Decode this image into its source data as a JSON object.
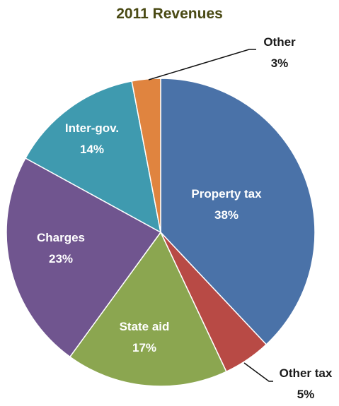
{
  "chart_data": {
    "type": "pie",
    "title": "2011 Revenues",
    "categories": [
      "Property tax",
      "Other tax",
      "State aid",
      "Charges",
      "Inter-gov.",
      "Other"
    ],
    "values": [
      38,
      5,
      17,
      23,
      14,
      3
    ],
    "value_labels": [
      "38%",
      "5%",
      "17%",
      "23%",
      "14%",
      "3%"
    ],
    "colors": [
      "#4a72a8",
      "#b84a45",
      "#8ba650",
      "#70558f",
      "#3f9aaf",
      "#e0843f"
    ]
  }
}
